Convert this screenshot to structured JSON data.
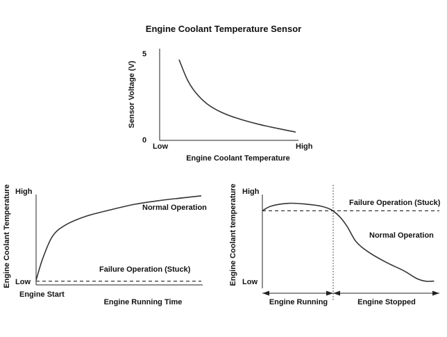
{
  "title": "Engine Coolant Temperature Sensor",
  "chart_data": [
    {
      "type": "line",
      "xlabel": "Engine Coolant Temperature",
      "ylabel": "Sensor Voltage (V)",
      "x_tick_labels": [
        "Low",
        "High"
      ],
      "y_tick_labels": [
        "0",
        "5"
      ],
      "ylim": [
        0,
        5
      ],
      "series": [
        {
          "values": [
            [
              0.14,
              4.4
            ],
            [
              0.2,
              3.3
            ],
            [
              0.26,
              2.6
            ],
            [
              0.34,
              2.0
            ],
            [
              0.44,
              1.55
            ],
            [
              0.56,
              1.2
            ],
            [
              0.7,
              0.9
            ],
            [
              0.85,
              0.65
            ],
            [
              0.98,
              0.45
            ]
          ]
        }
      ]
    },
    {
      "type": "line",
      "xlabel": "Engine Running Time",
      "ylabel": "Engine Coolant Temperature",
      "x_tick_labels": [
        "Engine Start"
      ],
      "y_tick_labels": [
        "Low",
        "High"
      ],
      "ylim": [
        0,
        1
      ],
      "series": [
        {
          "name": "Normal Operation",
          "values": [
            [
              0,
              0.05
            ],
            [
              0.04,
              0.28
            ],
            [
              0.1,
              0.52
            ],
            [
              0.18,
              0.64
            ],
            [
              0.3,
              0.73
            ],
            [
              0.45,
              0.8
            ],
            [
              0.6,
              0.86
            ],
            [
              0.75,
              0.9
            ],
            [
              0.9,
              0.93
            ],
            [
              1.0,
              0.95
            ]
          ]
        },
        {
          "name": "Failure Operation (Stuck)",
          "values": [
            [
              0,
              0.04
            ],
            [
              1.0,
              0.04
            ]
          ]
        }
      ]
    },
    {
      "type": "line",
      "xlabel": "",
      "ylabel": "Engine Coolant temperature",
      "x_tick_labels": [],
      "y_tick_labels": [
        "Low",
        "High"
      ],
      "ylim": [
        0,
        1
      ],
      "regions": [
        "Engine Running",
        "Engine Stopped"
      ],
      "series": [
        {
          "name": "Normal Operation",
          "values": [
            [
              0,
              0.79
            ],
            [
              0.05,
              0.84
            ],
            [
              0.15,
              0.87
            ],
            [
              0.25,
              0.86
            ],
            [
              0.33,
              0.84
            ],
            [
              0.39,
              0.8
            ],
            [
              0.44,
              0.72
            ],
            [
              0.48,
              0.62
            ],
            [
              0.53,
              0.46
            ],
            [
              0.6,
              0.35
            ],
            [
              0.7,
              0.24
            ],
            [
              0.8,
              0.15
            ],
            [
              0.87,
              0.07
            ],
            [
              0.92,
              0.04
            ],
            [
              0.97,
              0.04
            ]
          ]
        },
        {
          "name": "Failure Operation (Stuck)",
          "values": [
            [
              0,
              0.79
            ],
            [
              1.0,
              0.79
            ]
          ]
        }
      ]
    }
  ]
}
